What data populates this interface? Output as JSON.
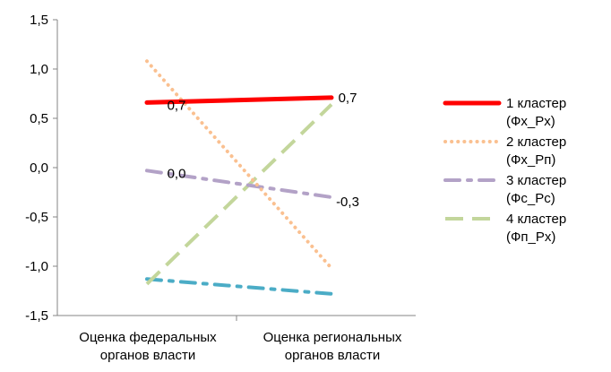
{
  "chart_data": {
    "type": "line",
    "categories": [
      "Оценка федеральных органов власти",
      "Оценка региональных органов власти"
    ],
    "category_lines": [
      [
        "Оценка федеральных",
        "органов власти"
      ],
      [
        "Оценка региональных",
        "органов власти"
      ]
    ],
    "ylim": [
      -1.5,
      1.5
    ],
    "yticks": [
      1.5,
      1.0,
      0.5,
      0.0,
      -0.5,
      -1.0,
      -1.5
    ],
    "ytick_labels": [
      "1,5",
      "1,0",
      "0,5",
      "0,0",
      "-0,5",
      "-1,0",
      "-1,5"
    ],
    "grid": false,
    "legend_position": "right",
    "series": [
      {
        "name": "1 кластер (Фх_Рх)",
        "legend_lines": [
          "1 кластер",
          "(Фх_Рх)"
        ],
        "values": [
          0.66,
          0.71
        ],
        "color": "#ff0000",
        "style": "solid",
        "labels": [
          "0,7",
          "0,7"
        ]
      },
      {
        "name": "2 кластер (Фх_Рп)",
        "legend_lines": [
          "2 кластер",
          "(Фх_Рп)"
        ],
        "values": [
          1.08,
          -1.02
        ],
        "color": "#fac090",
        "style": "dotted",
        "labels": []
      },
      {
        "name": "3 кластер (Фс_Рс)",
        "legend_lines": [
          "3 кластер",
          "(Фс_Рс)"
        ],
        "values": [
          -0.03,
          -0.3
        ],
        "color": "#b3a2c7",
        "style": "dashdot",
        "labels": [
          "0,0",
          "-0,3"
        ]
      },
      {
        "name": "4 кластер (Фп_Рх)",
        "legend_lines": [
          "4 кластер",
          "(Фп_Рх)"
        ],
        "values": [
          -1.18,
          0.64
        ],
        "color": "#c3d69b",
        "style": "dashed",
        "labels": []
      },
      {
        "values": [
          -1.13,
          -1.28
        ],
        "color": "#4bacc6",
        "style": "dashdot",
        "labels": []
      }
    ]
  }
}
